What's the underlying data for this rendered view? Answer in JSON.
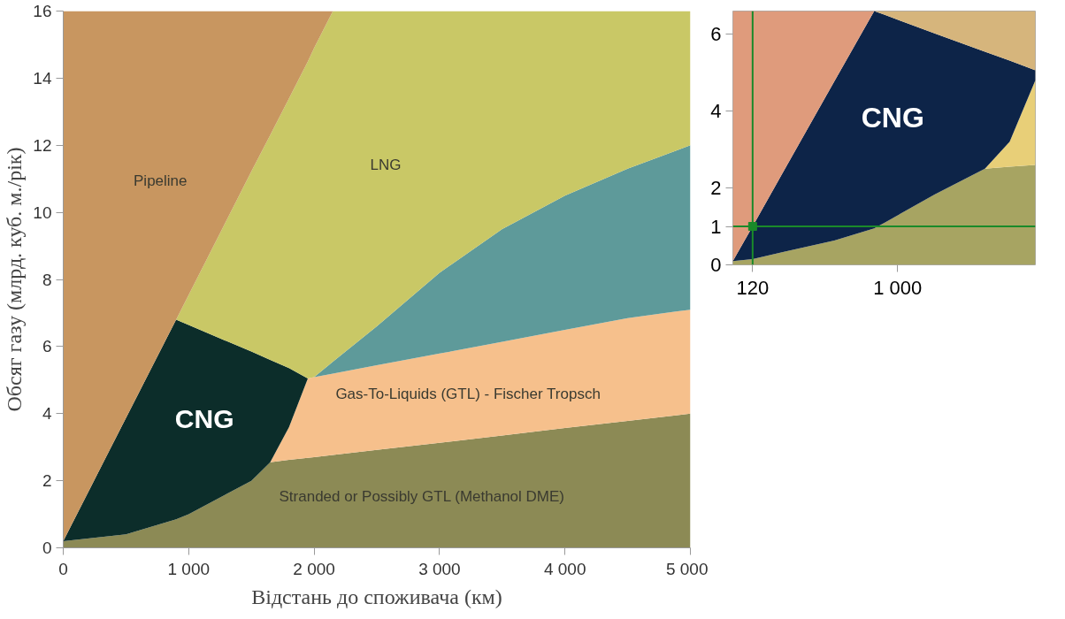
{
  "chart_data": [
    {
      "type": "area",
      "stacked": true,
      "xlabel": "Відстань до споживача (км)",
      "ylabel": "Обсяг газу (млрд. куб. м./рік)",
      "x": [
        0,
        500,
        900,
        1000,
        1500,
        1650,
        1800,
        1950,
        2000,
        2150,
        2500,
        3000,
        3500,
        4000,
        4500,
        5000
      ],
      "series": [
        {
          "name": "Stranded or Possibly GTL (Methanol DME)",
          "color": "#8c8a55",
          "values": [
            0.2,
            0.4,
            0.85,
            1.0,
            2.0,
            2.55,
            2.62,
            2.68,
            2.7,
            2.77,
            2.92,
            3.13,
            3.35,
            3.57,
            3.78,
            4.0
          ]
        },
        {
          "name": "Gas-To-Liquids (GTL) - Fischer Tropsch",
          "color": "#f6c08c",
          "values": [
            null,
            null,
            null,
            null,
            null,
            0,
            0.98,
            2.37,
            2.39,
            2.42,
            2.52,
            2.66,
            2.79,
            2.93,
            3.07,
            3.1
          ]
        },
        {
          "color": "#5e9a9a",
          "values": [
            null,
            null,
            null,
            null,
            null,
            null,
            null,
            null,
            0,
            0.36,
            1.16,
            2.41,
            3.36,
            4.0,
            4.45,
            4.9
          ]
        },
        {
          "name": "CNG",
          "color": "#0c2d2a",
          "values": [
            0,
            3.47,
            5.95,
            5.64,
            3.85,
            3.05,
            1.76,
            0,
            null,
            null,
            null,
            null,
            null,
            null,
            null,
            null
          ]
        },
        {
          "name": "LNG",
          "color": "#c9c866",
          "values": [
            null,
            null,
            0,
            0.9,
            5.37,
            6.7,
            8.04,
            9.45,
            9.81,
            10.45,
            9.4,
            7.8,
            6.5,
            5.5,
            4.7,
            4.0
          ]
        },
        {
          "name": "Pipeline",
          "color": "#c89660",
          "values": [
            15.8,
            12.13,
            9.2,
            8.46,
            4.78,
            3.7,
            2.6,
            1.5,
            1.1,
            0,
            null,
            null,
            null,
            null,
            null,
            null
          ]
        }
      ],
      "xlim": [
        0,
        5000
      ],
      "ylim": [
        0,
        16
      ],
      "xticks": [
        0,
        {
          "value": 1000,
          "label": "1 000"
        },
        {
          "value": 2000,
          "label": "2 000"
        },
        {
          "value": 3000,
          "label": "3 000"
        },
        {
          "value": 4000,
          "label": "4 000"
        },
        {
          "value": 5000,
          "label": "5 000"
        }
      ],
      "yticks": [
        0,
        2,
        4,
        6,
        8,
        10,
        12,
        14,
        16
      ]
    },
    {
      "type": "area",
      "stacked": true,
      "x": [
        0,
        120,
        310,
        616,
        858,
        922,
        1224,
        1530,
        1680,
        1836
      ],
      "series": [
        {
          "color": "#a7a462",
          "values": [
            0.1,
            0.15,
            0.34,
            0.63,
            0.95,
            1.1,
            1.83,
            2.5,
            2.55,
            2.6
          ]
        },
        {
          "color": "#e8cf78",
          "values": [
            null,
            null,
            null,
            null,
            null,
            null,
            null,
            0,
            0.65,
            2.2
          ]
        },
        {
          "name": "CNG",
          "color": "#0d2448",
          "values": [
            0,
            0.85,
            2.11,
            4.14,
            5.65,
            5.4,
            4.19,
            3.04,
            2.11,
            0.26
          ]
        },
        {
          "color": "#d6b57c",
          "values": [
            null,
            null,
            null,
            null,
            0,
            0.1,
            0.58,
            1.06,
            1.29,
            1.54
          ]
        },
        {
          "color": "#df9b7c",
          "values": [
            6.5,
            5.6,
            4.15,
            1.83,
            0,
            null,
            null,
            null,
            null,
            null
          ]
        },
        {
          "type": "scatter",
          "marker": "square",
          "color": "#1a8a2a",
          "x": [
            120
          ],
          "values": [
            1
          ]
        }
      ],
      "ref_lines": [
        {
          "axis": "x",
          "value": 120,
          "color": "#1a8a2a"
        },
        {
          "axis": "y",
          "value": 1,
          "color": "#1a8a2a"
        }
      ],
      "xlim": [
        0,
        1836
      ],
      "ylim": [
        0,
        6.6
      ],
      "xticks": [
        120,
        {
          "value": 1000,
          "label": "1 000"
        }
      ],
      "yticks": [
        0,
        1,
        2,
        4,
        6
      ]
    }
  ]
}
